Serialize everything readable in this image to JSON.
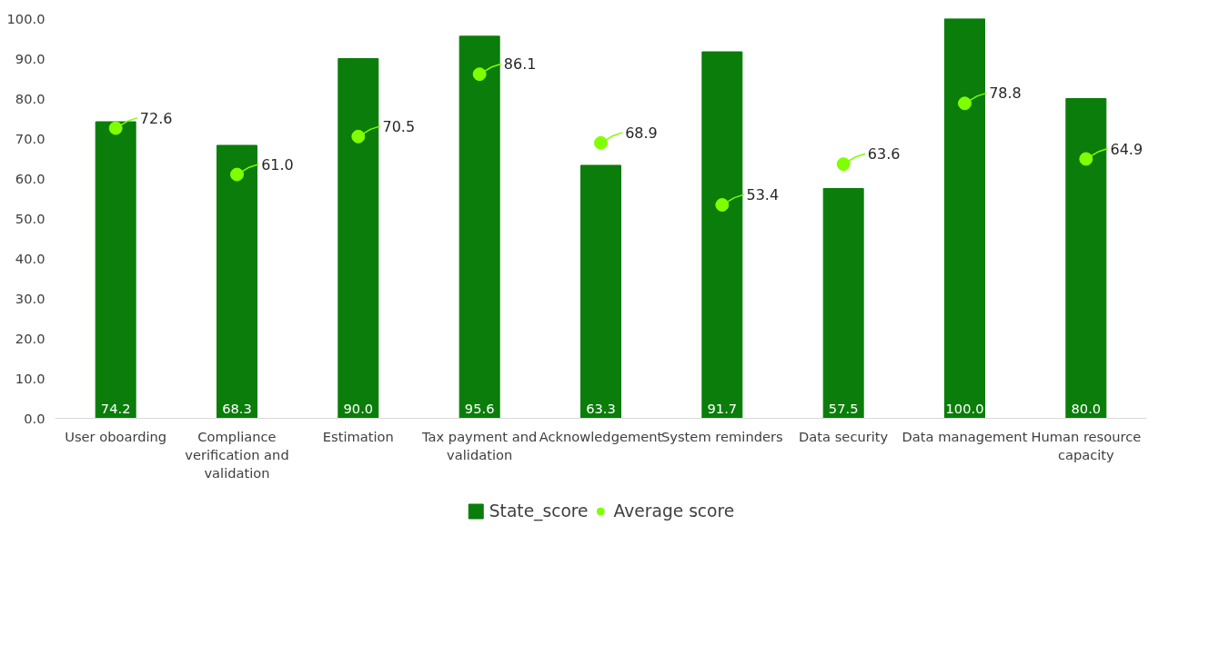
{
  "chart_data": {
    "type": "bar",
    "categories": [
      "User oboarding",
      "Compliance verification and validation",
      "Estimation",
      "Tax payment and validation",
      "Acknowledgement",
      "System reminders",
      "Data security",
      "Data management",
      "Human resource capacity"
    ],
    "series": [
      {
        "name": "State_score",
        "color": "#0a7d0a",
        "values": [
          74.2,
          68.3,
          90.0,
          95.6,
          63.3,
          91.7,
          57.5,
          100.0,
          80.0
        ],
        "value_labels": [
          "74.2",
          "68.3",
          "90.0",
          "95.6",
          "63.3",
          "91.7",
          "57.5",
          "100.0",
          "80.0"
        ]
      },
      {
        "name": "Average score",
        "type": "scatter",
        "color": "#80ff00",
        "marker": "circle",
        "values": [
          72.6,
          61.0,
          70.5,
          86.1,
          68.9,
          53.4,
          63.6,
          78.8,
          64.9
        ],
        "value_labels": [
          "72.6",
          "61.0",
          "70.5",
          "86.1",
          "68.9",
          "53.4",
          "63.6",
          "78.8",
          "64.9"
        ]
      }
    ],
    "ylim": [
      0,
      100
    ],
    "yticks": [
      {
        "value": 0,
        "label": "0.0"
      },
      {
        "value": 10,
        "label": "10.0"
      },
      {
        "value": 20,
        "label": "20.0"
      },
      {
        "value": 30,
        "label": "30.0"
      },
      {
        "value": 40,
        "label": "40.0"
      },
      {
        "value": 50,
        "label": "50.0"
      },
      {
        "value": 60,
        "label": "60.0"
      },
      {
        "value": 70,
        "label": "70.0"
      },
      {
        "value": 80,
        "label": "80.0"
      },
      {
        "value": 90,
        "label": "90.0"
      },
      {
        "value": 100,
        "label": "100.0"
      }
    ],
    "grid": false,
    "legend": "bottom"
  }
}
